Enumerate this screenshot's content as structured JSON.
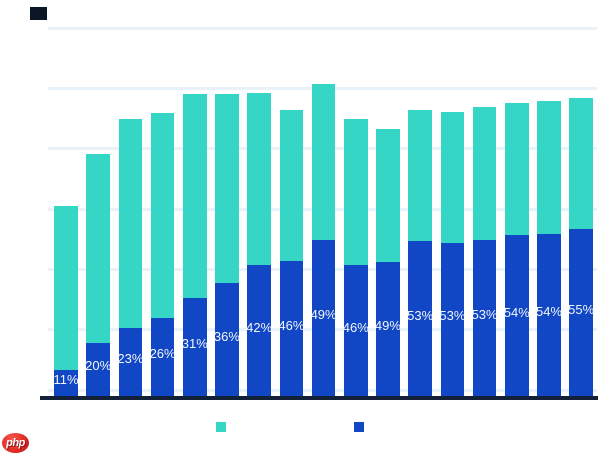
{
  "chart_data": {
    "type": "bar",
    "stacked": true,
    "orientation": "vertical",
    "bar_count": 17,
    "share_labels": [
      "11%",
      "20%",
      "23%",
      "26%",
      "31%",
      "36%",
      "42%",
      "46%",
      "49%",
      "46%",
      "49%",
      "53%",
      "53%",
      "53%",
      "54%",
      "54%",
      "55%"
    ],
    "share_pct": [
      11,
      20,
      23,
      26,
      31,
      36,
      42,
      46,
      49,
      46,
      49,
      53,
      53,
      53,
      54,
      54,
      55
    ],
    "totals_axis_pct": [
      30.5,
      39.2,
      45.0,
      46.0,
      49.1,
      49.1,
      49.3,
      46.4,
      50.8,
      44.9,
      43.2,
      46.5,
      46.1,
      46.9,
      47.5,
      47.9,
      48.4
    ],
    "series": [
      {
        "name": "upper-teal-segment",
        "color": "#36d6c6",
        "role": "remainder-of-total"
      },
      {
        "name": "lower-blue-segment",
        "color": "#1146c4",
        "role": "labeled-share-of-total"
      }
    ],
    "ylim": [
      0,
      60
    ],
    "gridline_step": 10,
    "grid": true,
    "axis_tick_text_visible": false,
    "legend_position": "bottom"
  },
  "legend": {
    "swatches": [
      {
        "name": "teal",
        "color": "#36d6c6"
      },
      {
        "name": "blue",
        "color": "#1146c4"
      }
    ]
  },
  "decorations": {
    "background": "#ffffff",
    "title_swatch_color": "#0b1726",
    "gridline_color": "#e9f2f9",
    "axis_line_color": "#122138",
    "bar_label_color": "#f3f7fc"
  },
  "watermark": {
    "text": "php",
    "bg": "#e02d25",
    "text_color": "#ffffff"
  }
}
